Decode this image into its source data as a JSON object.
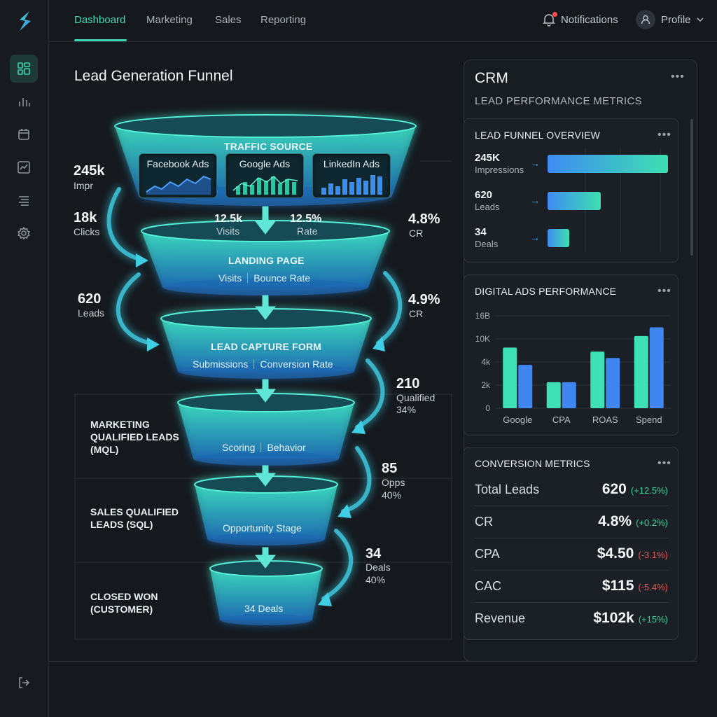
{
  "nav": {
    "tabs": [
      "Dashboard",
      "Marketing",
      "Sales",
      "Reporting"
    ],
    "notifications": "Notifications",
    "profile": "Profile"
  },
  "funnel": {
    "title": "Lead Generation Funnel",
    "traffic_source": {
      "title": "TRAFFIC SOURCE",
      "ads": [
        "Facebook Ads",
        "Google Ads",
        "LinkedIn Ads"
      ]
    },
    "landing_page": {
      "title": "LANDING PAGE",
      "sub": [
        "Visits",
        "Bounce Rate"
      ]
    },
    "lead_capture": {
      "title": "LEAD CAPTURE FORM",
      "sub": [
        "Submissions",
        "Conversion Rate"
      ]
    },
    "mql": {
      "label": "MARKETING QUALIFIED LEADS (MQL)",
      "sub": [
        "Scoring",
        "Behavior"
      ]
    },
    "sql": {
      "label": "SALES QUALIFIED LEADS (SQL)",
      "sub": "Opportunity Stage"
    },
    "closed": {
      "label": "CLOSED WON (CUSTOMER)",
      "sub": "34 Deals"
    },
    "metrics": {
      "impr": {
        "value": "245k",
        "label": "Impr"
      },
      "clicks": {
        "value": "18k",
        "label": "Clicks"
      },
      "visits": {
        "value": "12.5k",
        "label": "Visits"
      },
      "rate": {
        "value": "12.5%",
        "label": "Rate"
      },
      "cr1": {
        "value": "4.8%",
        "label": "CR"
      },
      "leads": {
        "value": "620",
        "label": "Leads"
      },
      "cr2": {
        "value": "4.9%",
        "label": "CR"
      },
      "qualified": {
        "value": "210",
        "label": "Qualified",
        "pct": "34%"
      },
      "opps": {
        "value": "85",
        "label": "Opps",
        "pct": "40%"
      },
      "deals": {
        "value": "34",
        "label": "Deals",
        "pct": "40%"
      }
    }
  },
  "crm": {
    "title": "CRM",
    "subtitle": "LEAD PERFORMANCE METRICS",
    "more": "•••",
    "lead_funnel_overview": {
      "title": "LEAD FUNNEL OVERVIEW",
      "rows": [
        {
          "value": "245K",
          "label": "Impressions",
          "fraction": 1.0
        },
        {
          "value": "620",
          "label": "Leads",
          "fraction": 0.44
        },
        {
          "value": "34",
          "label": "Deals",
          "fraction": 0.18
        }
      ]
    },
    "digital_ads": {
      "title": "DIGITAL ADS PERFORMANCE"
    },
    "conversion_metrics": {
      "title": "CONVERSION METRICS",
      "rows": [
        {
          "label": "Total Leads",
          "value": "620",
          "change": "(+12.5%)",
          "trend": "pos"
        },
        {
          "label": "CR",
          "value": "4.8%",
          "change": "(+0.2%)",
          "trend": "pos"
        },
        {
          "label": "CPA",
          "value": "$4.50",
          "change": "(-3.1%)",
          "trend": "neg"
        },
        {
          "label": "CAC",
          "value": "$115",
          "change": "(-5.4%)",
          "trend": "neg"
        },
        {
          "label": "Revenue",
          "value": "$102k",
          "change": "(+15%)",
          "trend": "pos"
        }
      ]
    }
  },
  "chart_data": {
    "type": "bar",
    "categories": [
      "Google",
      "CPA",
      "ROAS",
      "Spend"
    ],
    "series": [
      {
        "values": [
          10.5,
          4.5,
          9.8,
          12.5
        ]
      },
      {
        "values": [
          7.5,
          4.5,
          8.7,
          14.0
        ]
      }
    ],
    "ytick_labels": [
      "0",
      "2k",
      "4k",
      "10K",
      "16B"
    ],
    "ylim": [
      0,
      16
    ],
    "grid": true,
    "colors": [
      "#3ee0b6",
      "#3f86f0"
    ]
  },
  "icons": {
    "sidebar": [
      "dashboard-icon",
      "bar-chart-icon",
      "calendar-icon",
      "line-chart-icon",
      "list-icon",
      "gear-icon"
    ],
    "logout": "logout-icon",
    "bell": "bell-icon",
    "user": "user-icon",
    "chevron": "chevron-down-icon"
  },
  "colors": {
    "accent": "#3fd8b4",
    "blue": "#3f86f0",
    "positive": "#38d39a",
    "negative": "#f05454"
  }
}
